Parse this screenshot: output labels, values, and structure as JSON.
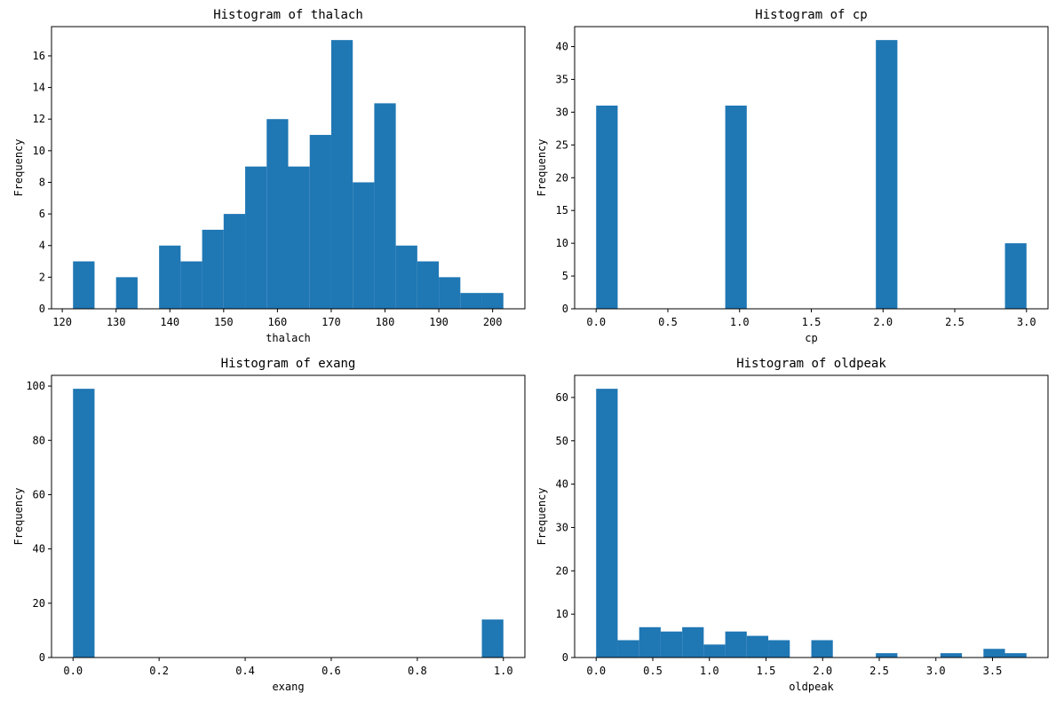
{
  "chart_data": [
    {
      "type": "bar",
      "title": "Histogram of thalach",
      "xlabel": "thalach",
      "ylabel": "Frequency",
      "bin_edges": [
        122.0,
        126.0,
        130.0,
        134.0,
        138.0,
        142.0,
        146.0,
        150.0,
        154.0,
        158.0,
        162.0,
        166.0,
        170.0,
        174.0,
        178.0,
        182.0,
        186.0,
        190.0,
        194.0,
        198.0,
        202.0
      ],
      "values": [
        3,
        0,
        2,
        0,
        4,
        3,
        5,
        6,
        9,
        12,
        9,
        11,
        17,
        8,
        13,
        4,
        3,
        2,
        1,
        1
      ],
      "xlim": [
        118,
        206
      ],
      "ylim": [
        0,
        17.85
      ],
      "xticks": [
        120,
        130,
        140,
        150,
        160,
        170,
        180,
        190,
        200
      ],
      "xtick_labels": [
        "120",
        "130",
        "140",
        "150",
        "160",
        "170",
        "180",
        "190",
        "200"
      ],
      "yticks": [
        0,
        2,
        4,
        6,
        8,
        10,
        12,
        14,
        16
      ],
      "ytick_labels": [
        "0",
        "2",
        "4",
        "6",
        "8",
        "10",
        "12",
        "14",
        "16"
      ]
    },
    {
      "type": "bar",
      "title": "Histogram of cp",
      "xlabel": "cp",
      "ylabel": "Frequency",
      "bin_edges": [
        0.0,
        0.15,
        0.3,
        0.45,
        0.6,
        0.75,
        0.9,
        1.05,
        1.2,
        1.35,
        1.5,
        1.65,
        1.8,
        1.95,
        2.1,
        2.25,
        2.4,
        2.55,
        2.7,
        2.85,
        3.0
      ],
      "values": [
        31,
        0,
        0,
        0,
        0,
        0,
        31,
        0,
        0,
        0,
        0,
        0,
        0,
        41,
        0,
        0,
        0,
        0,
        0,
        10
      ],
      "xlim": [
        -0.15,
        3.15
      ],
      "ylim": [
        0,
        43.05
      ],
      "xticks": [
        0.0,
        0.5,
        1.0,
        1.5,
        2.0,
        2.5,
        3.0
      ],
      "xtick_labels": [
        "0.0",
        "0.5",
        "1.0",
        "1.5",
        "2.0",
        "2.5",
        "3.0"
      ],
      "yticks": [
        0,
        5,
        10,
        15,
        20,
        25,
        30,
        35,
        40
      ],
      "ytick_labels": [
        "0",
        "5",
        "10",
        "15",
        "20",
        "25",
        "30",
        "35",
        "40"
      ]
    },
    {
      "type": "bar",
      "title": "Histogram of exang",
      "xlabel": "exang",
      "ylabel": "Frequency",
      "bin_edges": [
        0.0,
        0.05,
        0.1,
        0.15,
        0.2,
        0.25,
        0.3,
        0.35,
        0.4,
        0.45,
        0.5,
        0.55,
        0.6,
        0.65,
        0.7,
        0.75,
        0.8,
        0.85,
        0.9,
        0.95,
        1.0
      ],
      "values": [
        99,
        0,
        0,
        0,
        0,
        0,
        0,
        0,
        0,
        0,
        0,
        0,
        0,
        0,
        0,
        0,
        0,
        0,
        0,
        14
      ],
      "xlim": [
        -0.05,
        1.05
      ],
      "ylim": [
        0,
        103.95
      ],
      "xticks": [
        0.0,
        0.2,
        0.4,
        0.6,
        0.8,
        1.0
      ],
      "xtick_labels": [
        "0.0",
        "0.2",
        "0.4",
        "0.6",
        "0.8",
        "1.0"
      ],
      "yticks": [
        0,
        20,
        40,
        60,
        80,
        100
      ],
      "ytick_labels": [
        "0",
        "20",
        "40",
        "60",
        "80",
        "100"
      ]
    },
    {
      "type": "bar",
      "title": "Histogram of oldpeak",
      "xlabel": "oldpeak",
      "ylabel": "Frequency",
      "bin_edges": [
        0.0,
        0.19,
        0.38,
        0.57,
        0.76,
        0.95,
        1.14,
        1.33,
        1.52,
        1.71,
        1.9,
        2.09,
        2.28,
        2.47,
        2.66,
        2.85,
        3.04,
        3.23,
        3.42,
        3.61,
        3.8
      ],
      "values": [
        62,
        4,
        7,
        6,
        7,
        3,
        6,
        5,
        4,
        0,
        4,
        0,
        0,
        1,
        0,
        0,
        1,
        0,
        2,
        1
      ],
      "xlim": [
        -0.19,
        3.99
      ],
      "ylim": [
        0,
        65.1
      ],
      "xticks": [
        0.0,
        0.5,
        1.0,
        1.5,
        2.0,
        2.5,
        3.0,
        3.5
      ],
      "xtick_labels": [
        "0.0",
        "0.5",
        "1.0",
        "1.5",
        "2.0",
        "2.5",
        "3.0",
        "3.5"
      ],
      "yticks": [
        0,
        10,
        20,
        30,
        40,
        50,
        60
      ],
      "ytick_labels": [
        "0",
        "10",
        "20",
        "30",
        "40",
        "50",
        "60"
      ]
    }
  ]
}
